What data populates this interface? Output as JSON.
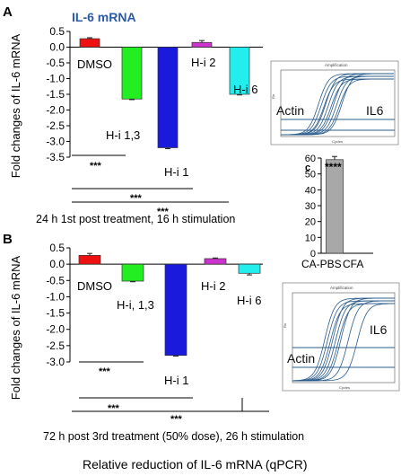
{
  "figure": {
    "footer_caption": "Relative reduction of IL-6 mRNA (qPCR)",
    "colors": {
      "DMSO": "#ee1111",
      "H-i 1,3": "#22ee22",
      "H-i 1": "#1a1adc",
      "H-i 2": "#cc33cc",
      "H-i 6": "#22eeee",
      "control": "#a8a8a8",
      "amplification_line": "#2a5c8c"
    }
  },
  "chart_data": [
    {
      "panel_label": "A",
      "type": "bar",
      "title": "IL-6 mRNA",
      "ylabel": "Fold changes of IL-6 mRNA",
      "subtitle": "24 h 1st post treatment, 16 h stimulation",
      "ylim": [
        -3.5,
        0.5
      ],
      "yticks": [
        "0.5",
        "0.0",
        "-0.5",
        "-1.0",
        "-1.5",
        "-2.0",
        "-2.5",
        "-3.0",
        "-3.5"
      ],
      "categories": [
        "DMSO",
        "H-i 1,3",
        "H-i 1",
        "H-i 2",
        "H-i 6"
      ],
      "values": [
        0.27,
        -1.65,
        -3.2,
        0.15,
        -1.5
      ],
      "errors": [
        0.03,
        0.02,
        0.03,
        0.06,
        0.02
      ],
      "significance": [
        "***",
        "***",
        "***"
      ]
    },
    {
      "panel_label": "B",
      "type": "bar",
      "ylabel": "Fold changes of IL-6 mRNA",
      "subtitle": "72 h post 3rd treatment (50% dose), 26 h stimulation",
      "ylim": [
        -3.0,
        0.5
      ],
      "yticks": [
        "0.5",
        "0.0",
        "-0.5",
        "-1.0",
        "-1.5",
        "-2.0",
        "-2.5",
        "-3.0"
      ],
      "categories": [
        "DMSO",
        "H-i, 1,3",
        "H-i 1",
        "H-i 2",
        "H-i 6"
      ],
      "values": [
        0.27,
        -0.52,
        -2.8,
        0.17,
        -0.28
      ],
      "errors": [
        0.06,
        0.02,
        0.02,
        0.02,
        0.05
      ],
      "significance": [
        "***",
        "***",
        "***"
      ]
    },
    {
      "panel_label": "c",
      "type": "bar",
      "ylim": [
        0,
        60
      ],
      "yticks": [
        "60",
        "50",
        "40",
        "30",
        "20",
        "10",
        "0"
      ],
      "categories": [
        "CA-PBS",
        "CFA"
      ],
      "values": [
        59,
        0
      ],
      "errors": [
        2,
        0
      ],
      "significance": [
        "****"
      ]
    }
  ],
  "amplification_plots": [
    {
      "title": "Amplification",
      "xlabel": "Cycles",
      "ylabel": "Rn",
      "labels": [
        "Actin",
        "IL6"
      ]
    },
    {
      "title": "Amplification",
      "xlabel": "Cycles",
      "ylabel": "Rn",
      "labels": [
        "Actin",
        "IL6"
      ]
    }
  ]
}
